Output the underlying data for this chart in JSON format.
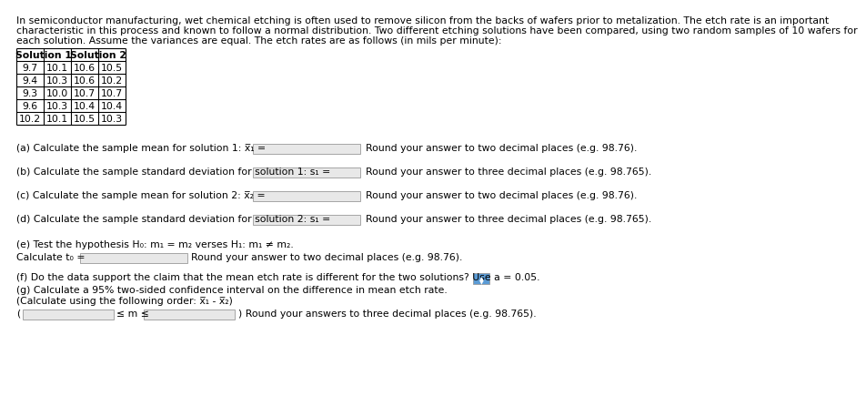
{
  "intro_lines": [
    "In semiconductor manufacturing, wet chemical etching is often used to remove silicon from the backs of wafers prior to metalization. The etch rate is an important",
    "characteristic in this process and known to follow a normal distribution. Two different etching solutions have been compared, using two random samples of 10 wafers for",
    "each solution. Assume the variances are equal. The etch rates are as follows (in mils per minute):"
  ],
  "table_headers": [
    "Solution 1",
    "Solution 2"
  ],
  "table_col1": [
    "9.7",
    "9.4",
    "9.3",
    "9.6",
    "10.2"
  ],
  "table_col2": [
    "10.1",
    "10.3",
    "10.0",
    "10.3",
    "10.1"
  ],
  "table_col3": [
    "10.6",
    "10.6",
    "10.7",
    "10.4",
    "10.5"
  ],
  "table_col4": [
    "10.5",
    "10.2",
    "10.7",
    "10.4",
    "10.3"
  ],
  "bg_color": "#ffffff",
  "text_color": "#000000",
  "font_size": 7.8,
  "font_size_small": 7.2
}
